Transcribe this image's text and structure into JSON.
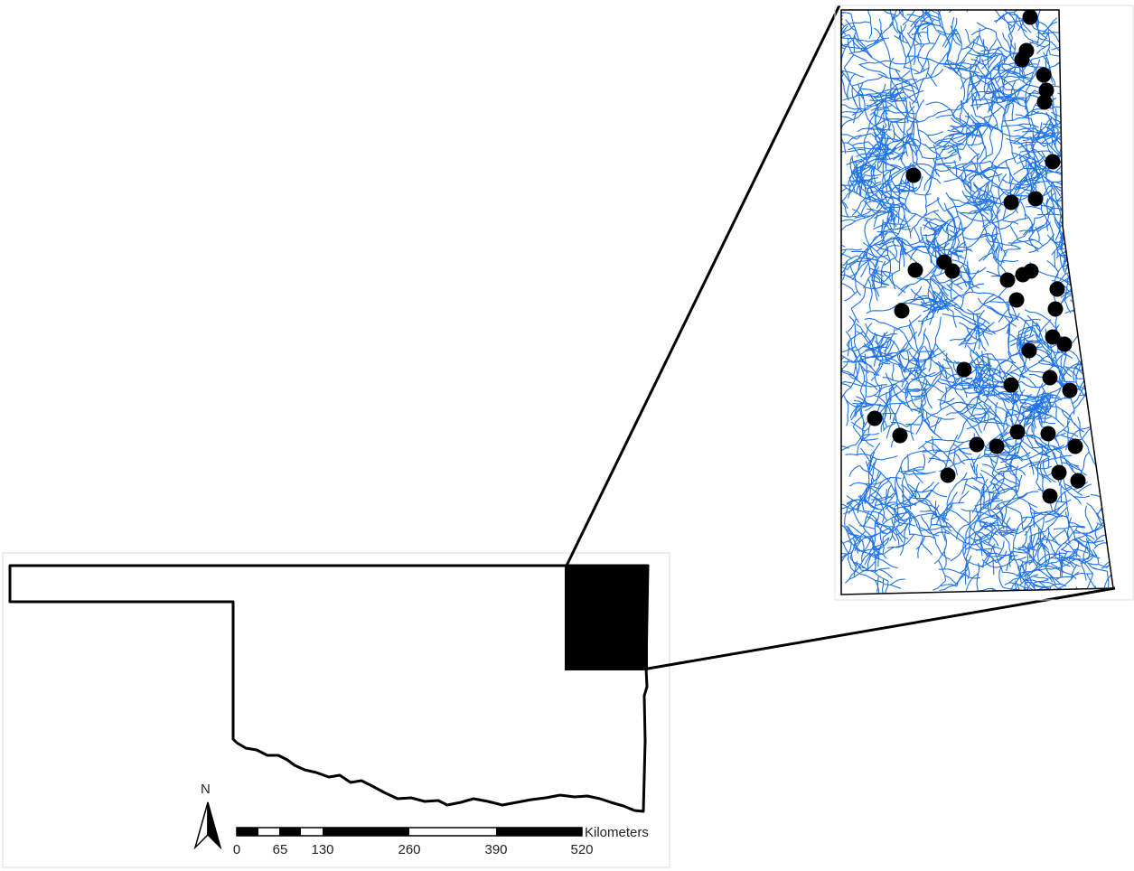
{
  "north_arrow": {
    "label": "N"
  },
  "scale_bar": {
    "unit": "Kilometers",
    "ticks": [
      "0",
      "65",
      "130",
      "260",
      "390",
      "520"
    ]
  },
  "colors": {
    "streams": "#1e73e8",
    "outline": "#000000",
    "sites": "#000000"
  },
  "inset": {
    "site_count": 44
  }
}
